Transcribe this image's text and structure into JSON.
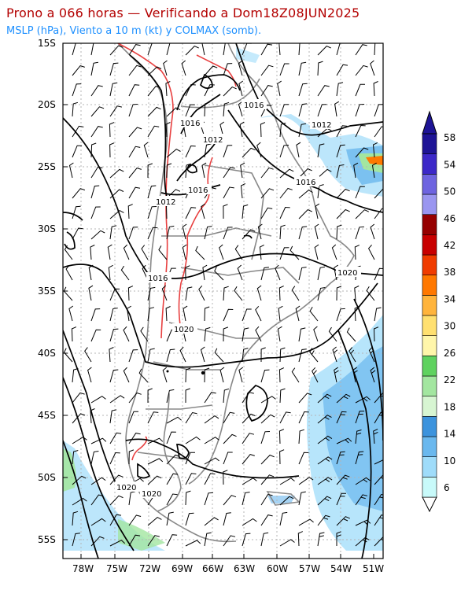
{
  "title": "Prono a 066 horas — Verificando a Dom18Z08JUN2025",
  "subtitle": "MSLP (hPa), Viento a 10 m (kt) y COLMAX (somb).",
  "map": {
    "lat_labels": [
      "15S",
      "20S",
      "25S",
      "30S",
      "35S",
      "40S",
      "45S",
      "50S",
      "55S"
    ],
    "lon_labels": [
      "78W",
      "75W",
      "72W",
      "69W",
      "66W",
      "63W",
      "60W",
      "57W",
      "54W",
      "51W"
    ],
    "isobar_labels": [
      "1016",
      "1012",
      "1012",
      "1016",
      "1016",
      "1012",
      "1016",
      "1020",
      "1020",
      "1020",
      "1020"
    ]
  },
  "colorbar": {
    "levels": [
      "6",
      "10",
      "14",
      "18",
      "22",
      "26",
      "30",
      "34",
      "38",
      "42",
      "46",
      "50",
      "54",
      "58"
    ],
    "colors": [
      "#c8fafa",
      "#9fdcfa",
      "#6ab8ee",
      "#3c93dd",
      "#d7f5d2",
      "#a3e6a0",
      "#5fd25f",
      "#fff6aa",
      "#ffe070",
      "#ffb43c",
      "#ff7800",
      "#f03c00",
      "#c80000",
      "#960000",
      "#9a96f0",
      "#6e64e0",
      "#3c28c8",
      "#1e1496"
    ]
  }
}
